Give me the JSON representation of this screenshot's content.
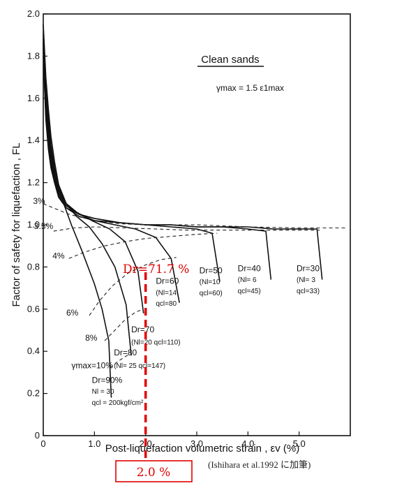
{
  "chart_data": {
    "type": "line",
    "title": "Clean sands",
    "subtitle": "γmax = 1.5 ε1max",
    "xlabel": "Post-liquefaction volumetric strain , εv (%)",
    "ylabel": "Factor of safety for liquefaction , FL",
    "xlim": [
      0,
      6.0
    ],
    "ylim": [
      0,
      2.0
    ],
    "x_ticks": [
      {
        "v": 0,
        "label": "0"
      },
      {
        "v": 1,
        "label": "1.0"
      },
      {
        "v": 2,
        "label": "2.0"
      },
      {
        "v": 3,
        "label": "3.0"
      },
      {
        "v": 4,
        "label": "4.0"
      },
      {
        "v": 5,
        "label": "5.0"
      }
    ],
    "y_ticks": [
      {
        "v": 0,
        "label": "0"
      },
      {
        "v": 0.2,
        "label": "0.2"
      },
      {
        "v": 0.4,
        "label": "0.4"
      },
      {
        "v": 0.6,
        "label": "0.6"
      },
      {
        "v": 0.8,
        "label": "0.8"
      },
      {
        "v": 1.0,
        "label": "1.0"
      },
      {
        "v": 1.2,
        "label": "1.2"
      },
      {
        "v": 1.4,
        "label": "1.4"
      },
      {
        "v": 1.6,
        "label": "1.6"
      },
      {
        "v": 1.8,
        "label": "1.8"
      },
      {
        "v": 2.0,
        "label": "2.0"
      }
    ],
    "grid": false,
    "series": [
      {
        "name": "Dr=90%",
        "style": "solid",
        "x": [
          0.0,
          0.05,
          0.1,
          0.15,
          0.22,
          0.3,
          0.4,
          0.55,
          0.75,
          1.0,
          1.15,
          1.28,
          1.33
        ],
        "y": [
          1.95,
          1.7,
          1.55,
          1.42,
          1.3,
          1.19,
          1.1,
          1.0,
          0.88,
          0.72,
          0.6,
          0.45,
          0.18
        ]
      },
      {
        "name": "Dr=80",
        "style": "solid",
        "x": [
          0.0,
          0.05,
          0.1,
          0.15,
          0.22,
          0.3,
          0.45,
          0.65,
          0.9,
          1.15,
          1.4,
          1.62,
          1.72
        ],
        "y": [
          1.9,
          1.64,
          1.5,
          1.38,
          1.27,
          1.19,
          1.1,
          1.04,
          0.99,
          0.91,
          0.8,
          0.62,
          0.38
        ]
      },
      {
        "name": "Dr=70",
        "style": "solid",
        "x": [
          0.0,
          0.05,
          0.1,
          0.15,
          0.22,
          0.3,
          0.45,
          0.65,
          0.95,
          1.3,
          1.6,
          1.85,
          1.96
        ],
        "y": [
          1.88,
          1.6,
          1.46,
          1.35,
          1.25,
          1.17,
          1.1,
          1.06,
          1.02,
          0.98,
          0.92,
          0.78,
          0.58
        ]
      },
      {
        "name": "Dr=60",
        "style": "solid",
        "x": [
          0.0,
          0.05,
          0.1,
          0.15,
          0.22,
          0.3,
          0.45,
          0.7,
          1.0,
          1.4,
          1.8,
          2.2,
          2.5,
          2.66
        ],
        "y": [
          1.86,
          1.57,
          1.43,
          1.33,
          1.23,
          1.16,
          1.1,
          1.05,
          1.02,
          1.0,
          0.98,
          0.94,
          0.84,
          0.63
        ]
      },
      {
        "name": "Dr=50",
        "style": "solid",
        "x": [
          0.0,
          0.05,
          0.1,
          0.15,
          0.22,
          0.3,
          0.45,
          0.7,
          1.0,
          1.5,
          2.0,
          2.5,
          3.0,
          3.3,
          3.45
        ],
        "y": [
          1.84,
          1.54,
          1.4,
          1.31,
          1.22,
          1.15,
          1.09,
          1.05,
          1.03,
          1.01,
          1.0,
          0.99,
          0.98,
          0.96,
          0.73
        ]
      },
      {
        "name": "Dr=40",
        "style": "solid",
        "x": [
          0.0,
          0.05,
          0.1,
          0.15,
          0.22,
          0.3,
          0.45,
          0.7,
          1.0,
          1.5,
          2.0,
          2.5,
          3.0,
          3.5,
          4.0,
          4.35,
          4.45
        ],
        "y": [
          1.82,
          1.52,
          1.38,
          1.29,
          1.21,
          1.14,
          1.08,
          1.05,
          1.03,
          1.01,
          1.0,
          1.0,
          0.99,
          0.99,
          0.98,
          0.97,
          0.74
        ]
      },
      {
        "name": "Dr=30",
        "style": "solid",
        "x": [
          0.0,
          0.05,
          0.1,
          0.15,
          0.22,
          0.3,
          0.45,
          0.7,
          1.0,
          1.5,
          2.0,
          2.5,
          3.0,
          3.5,
          4.0,
          4.5,
          5.0,
          5.35,
          5.45
        ],
        "y": [
          1.8,
          1.5,
          1.36,
          1.27,
          1.2,
          1.13,
          1.08,
          1.04,
          1.02,
          1.01,
          1.0,
          1.0,
          0.99,
          0.99,
          0.99,
          0.98,
          0.98,
          0.98,
          0.74
        ]
      },
      {
        "name": "γmax=3%",
        "style": "dashed",
        "x": [
          0.0,
          0.5,
          1.0,
          1.5,
          2.0,
          2.5,
          3.0,
          3.5,
          4.0,
          5.0,
          5.5,
          5.9
        ],
        "y": [
          1.1,
          1.05,
          1.02,
          1.005,
          1.0,
          1.0,
          1.0,
          0.995,
          0.99,
          0.985,
          0.985,
          0.985
        ]
      },
      {
        "name": "γmax=3.5%",
        "style": "dashed",
        "x": [
          0.2,
          0.6,
          1.0,
          1.6,
          2.2,
          2.8,
          3.5,
          4.2,
          5.0,
          5.4
        ],
        "y": [
          0.97,
          0.985,
          0.99,
          0.985,
          0.98,
          0.975,
          0.975,
          0.975,
          0.975,
          0.975
        ]
      },
      {
        "name": "γmax=4%",
        "style": "dashed",
        "x": [
          0.5,
          0.8,
          1.2,
          1.6,
          2.0,
          2.5,
          3.0,
          3.4
        ],
        "y": [
          0.84,
          0.87,
          0.9,
          0.92,
          0.935,
          0.945,
          0.955,
          0.96
        ]
      },
      {
        "name": "γmax=6%",
        "style": "dashed",
        "x": [
          0.9,
          1.1,
          1.35,
          1.65,
          2.0,
          2.3,
          2.6
        ],
        "y": [
          0.57,
          0.64,
          0.71,
          0.77,
          0.81,
          0.835,
          0.845
        ]
      },
      {
        "name": "γmax=8%",
        "style": "dashed",
        "x": [
          1.2,
          1.4,
          1.6,
          1.8,
          1.95
        ],
        "y": [
          0.45,
          0.5,
          0.55,
          0.585,
          0.6
        ]
      },
      {
        "name": "γmax=10%",
        "style": "dashed",
        "x": [
          1.3,
          1.45,
          1.6,
          1.72
        ],
        "y": [
          0.32,
          0.35,
          0.375,
          0.39
        ]
      }
    ],
    "annotations": [
      {
        "text": "3%",
        "x": -0.2,
        "y": 1.1
      },
      {
        "text": "3.5%",
        "x": -0.18,
        "y": 0.98
      },
      {
        "text": "4%",
        "x": 0.18,
        "y": 0.84
      },
      {
        "text": "6%",
        "x": 0.45,
        "y": 0.57
      },
      {
        "text": "8%",
        "x": 0.82,
        "y": 0.45
      },
      {
        "text": "γmax=10%",
        "x": 0.55,
        "y": 0.32
      },
      {
        "lines": [
          "Dr=90%",
          "Nl = 30",
          "qcl = 200kgf/cm²"
        ],
        "x": 0.95,
        "y": 0.25,
        "dy": 0.052
      },
      {
        "lines": [
          "Dr=80",
          "(Nl= 25 qcl=147)"
        ],
        "x": 1.38,
        "y": 0.38,
        "dy": 0.058
      },
      {
        "lines": [
          "Dr=70",
          "(Nl=20 qcl=110)"
        ],
        "x": 1.72,
        "y": 0.49,
        "dy": 0.058
      },
      {
        "lines": [
          "Dr=60",
          "(Nl=14",
          "qcl=80"
        ],
        "x": 2.2,
        "y": 0.72,
        "dy": 0.052
      },
      {
        "lines": [
          "Dr=50",
          "(Nl=10",
          "qcl=60)"
        ],
        "x": 3.05,
        "y": 0.77,
        "dy": 0.052
      },
      {
        "lines": [
          "Dr=40",
          "(Nl= 6",
          "qcl=45)"
        ],
        "x": 3.8,
        "y": 0.78,
        "dy": 0.052
      },
      {
        "lines": [
          "Dr=30",
          "(Nl= 3",
          "qcl=33)"
        ],
        "x": 4.95,
        "y": 0.78,
        "dy": 0.052
      }
    ]
  },
  "highlight": {
    "dr_label": "Dr=71.7 %",
    "strain_label": "2.0 %",
    "strain_value": 2.0,
    "color": "#e00000"
  },
  "citation": "(Ishihara et al.1992 に加筆)"
}
